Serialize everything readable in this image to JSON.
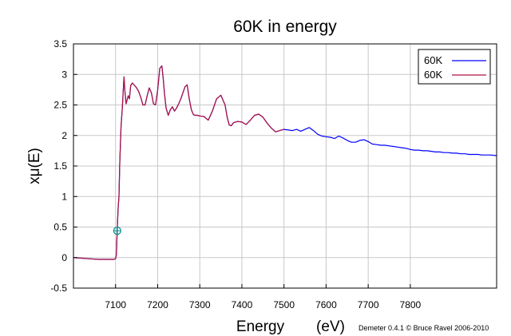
{
  "chart_data": {
    "type": "line",
    "title": "60K in energy",
    "xlabel": "Energy",
    "xlabel_unit": "(eV)",
    "ylabel": "xμ(E)",
    "credit": "Demeter 0.4.1 © Bruce Ravel 2006-2010",
    "xlim": [
      7000,
      8005
    ],
    "ylim": [
      -0.5,
      3.5
    ],
    "x_ticks": [
      7100,
      7200,
      7300,
      7400,
      7500,
      7600,
      7700,
      7800
    ],
    "y_ticks": [
      -0.5,
      0,
      0.5,
      1,
      1.5,
      2,
      2.5,
      3,
      3.5
    ],
    "x_tick_labels": [
      "7100",
      "7200",
      "7300",
      "7400",
      "7500",
      "7600",
      "7700",
      "7800"
    ],
    "y_tick_labels": [
      "-0.5",
      "0",
      "0.5",
      "1",
      "1.5",
      "2",
      "2.5",
      "3",
      "3.5"
    ],
    "grid": true,
    "legend": "top-right",
    "marker": {
      "x": 7104,
      "y": 0.44,
      "color": "#008b8b"
    },
    "series": [
      {
        "name": "60K",
        "color": "#0000ff",
        "x": [
          7000,
          7020,
          7040,
          7060,
          7080,
          7095,
          7100,
          7102,
          7104,
          7106,
          7108,
          7110,
          7113,
          7116,
          7118,
          7120,
          7122,
          7125,
          7128,
          7130,
          7133,
          7136,
          7140,
          7145,
          7150,
          7155,
          7160,
          7165,
          7170,
          7175,
          7180,
          7185,
          7190,
          7195,
          7200,
          7205,
          7210,
          7213,
          7216,
          7220,
          7225,
          7230,
          7235,
          7240,
          7245,
          7250,
          7255,
          7260,
          7265,
          7270,
          7275,
          7280,
          7285,
          7290,
          7295,
          7300,
          7310,
          7320,
          7330,
          7340,
          7350,
          7360,
          7365,
          7370,
          7375,
          7380,
          7390,
          7400,
          7410,
          7420,
          7430,
          7440,
          7450,
          7460,
          7470,
          7480,
          7490,
          7500,
          7510,
          7520,
          7530,
          7540,
          7550,
          7560,
          7570,
          7580,
          7590,
          7600,
          7610,
          7620,
          7630,
          7640,
          7650,
          7660,
          7670,
          7680,
          7690,
          7700,
          7710,
          7720,
          7730,
          7740,
          7750,
          7760,
          7770,
          7780,
          7790,
          7800,
          7810,
          7820,
          7830,
          7840,
          7850,
          7860,
          7870,
          7880,
          7890,
          7900,
          7910,
          7920,
          7930,
          7940,
          7950,
          7960,
          7970,
          7980,
          7990,
          8005
        ],
        "y": [
          0.0,
          -0.01,
          -0.02,
          -0.03,
          -0.03,
          -0.03,
          -0.02,
          0.05,
          0.44,
          0.8,
          1.0,
          1.55,
          2.15,
          2.45,
          2.7,
          2.96,
          2.75,
          2.52,
          2.6,
          2.65,
          2.6,
          2.82,
          2.86,
          2.82,
          2.78,
          2.72,
          2.62,
          2.5,
          2.5,
          2.65,
          2.78,
          2.7,
          2.52,
          2.5,
          2.75,
          3.1,
          3.14,
          2.95,
          2.7,
          2.45,
          2.33,
          2.42,
          2.47,
          2.4,
          2.45,
          2.52,
          2.6,
          2.7,
          2.8,
          2.83,
          2.6,
          2.42,
          2.34,
          2.33,
          2.33,
          2.32,
          2.31,
          2.25,
          2.4,
          2.6,
          2.66,
          2.5,
          2.3,
          2.17,
          2.16,
          2.21,
          2.23,
          2.22,
          2.18,
          2.25,
          2.33,
          2.35,
          2.3,
          2.2,
          2.12,
          2.06,
          2.08,
          2.1,
          2.09,
          2.08,
          2.1,
          2.07,
          2.1,
          2.13,
          2.08,
          2.02,
          1.99,
          1.98,
          1.97,
          1.95,
          1.99,
          1.96,
          1.92,
          1.89,
          1.89,
          1.92,
          1.93,
          1.9,
          1.86,
          1.85,
          1.84,
          1.84,
          1.83,
          1.82,
          1.81,
          1.8,
          1.79,
          1.77,
          1.76,
          1.76,
          1.75,
          1.75,
          1.74,
          1.73,
          1.73,
          1.72,
          1.72,
          1.71,
          1.71,
          1.7,
          1.7,
          1.69,
          1.69,
          1.69,
          1.68,
          1.68,
          1.68,
          1.67
        ]
      },
      {
        "name": "60K",
        "color": "#b0103e",
        "x": [
          7000,
          7020,
          7040,
          7060,
          7080,
          7095,
          7100,
          7102,
          7104,
          7106,
          7108,
          7110,
          7113,
          7116,
          7118,
          7120,
          7122,
          7125,
          7128,
          7130,
          7133,
          7136,
          7140,
          7145,
          7150,
          7155,
          7160,
          7165,
          7170,
          7175,
          7180,
          7185,
          7190,
          7195,
          7200,
          7205,
          7210,
          7213,
          7216,
          7220,
          7225,
          7230,
          7235,
          7240,
          7245,
          7250,
          7255,
          7260,
          7265,
          7270,
          7275,
          7280,
          7285,
          7290,
          7295,
          7300,
          7310,
          7320,
          7330,
          7340,
          7350,
          7360,
          7365,
          7370,
          7375,
          7380,
          7390,
          7400,
          7410,
          7420,
          7430,
          7440,
          7450,
          7460,
          7470,
          7480,
          7490,
          7500
        ],
        "y": [
          0.0,
          -0.01,
          -0.02,
          -0.03,
          -0.03,
          -0.03,
          -0.02,
          0.05,
          0.44,
          0.8,
          1.0,
          1.55,
          2.15,
          2.45,
          2.7,
          2.96,
          2.75,
          2.52,
          2.6,
          2.65,
          2.6,
          2.82,
          2.86,
          2.82,
          2.78,
          2.72,
          2.62,
          2.5,
          2.5,
          2.65,
          2.78,
          2.7,
          2.52,
          2.5,
          2.75,
          3.1,
          3.14,
          2.95,
          2.7,
          2.45,
          2.33,
          2.42,
          2.47,
          2.4,
          2.45,
          2.52,
          2.6,
          2.7,
          2.8,
          2.83,
          2.6,
          2.42,
          2.34,
          2.33,
          2.33,
          2.32,
          2.31,
          2.25,
          2.4,
          2.6,
          2.66,
          2.5,
          2.3,
          2.17,
          2.16,
          2.21,
          2.23,
          2.22,
          2.18,
          2.25,
          2.33,
          2.35,
          2.3,
          2.2,
          2.12,
          2.06,
          2.08,
          2.1
        ]
      }
    ]
  }
}
